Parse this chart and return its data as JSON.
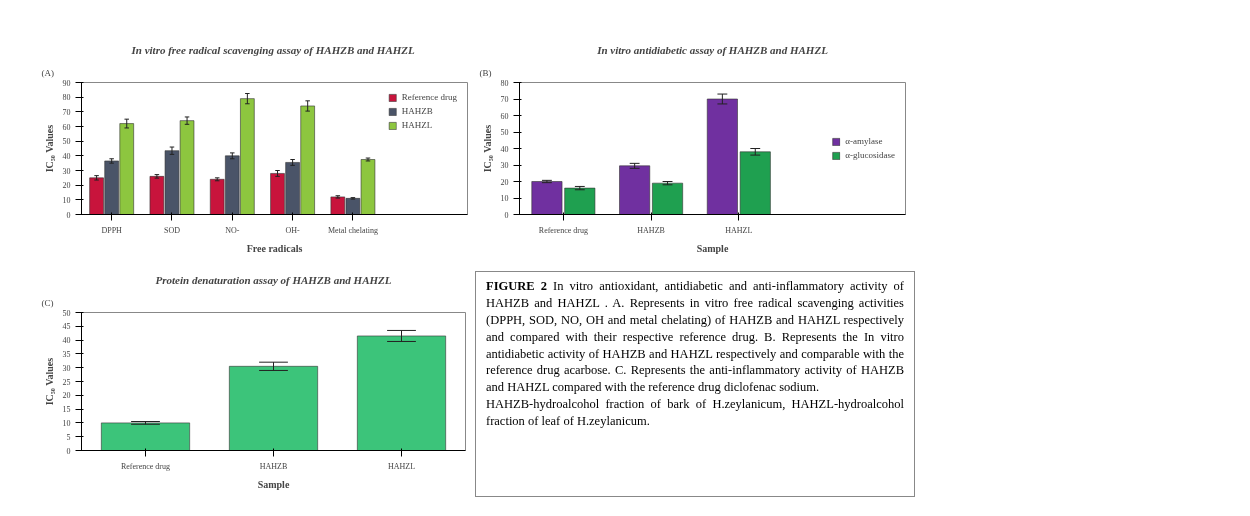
{
  "chart_data": [
    {
      "type": "bar",
      "title": "In vitro free radical scavenging assay of HAHZB  and HAHZL",
      "xlabel": "Free radicals",
      "ylabel": "IC₅₀ Values",
      "annotations": [
        "(A)"
      ],
      "categories": [
        "DPPH",
        "SOD",
        "NO-",
        "OH-",
        "Metal chelating"
      ],
      "series": [
        {
          "name": "Reference drug",
          "color": "#c8143c",
          "values": [
            25,
            26,
            24,
            28,
            12
          ],
          "errors": [
            1.5,
            1.2,
            1,
            2,
            0.8
          ]
        },
        {
          "name": "HAHZB",
          "color": "#4a5468",
          "values": [
            36.5,
            43.5,
            40,
            35.5,
            11
          ],
          "errors": [
            1.5,
            2.5,
            2,
            2,
            0.5
          ]
        },
        {
          "name": "HAHZL",
          "color": "#8dc63f",
          "values": [
            62,
            64,
            79,
            74,
            37.5
          ],
          "errors": [
            3,
            2.5,
            3.5,
            3.5,
            1
          ]
        }
      ],
      "ylim": [
        0,
        90
      ],
      "yticks": [
        0,
        10,
        20,
        30,
        40,
        50,
        60,
        70,
        80,
        90
      ],
      "grid": false,
      "legend": "top right"
    },
    {
      "type": "bar",
      "title": "In vitro antidiabetic assay of HAHZB and HAHZL",
      "xlabel": "Sample",
      "ylabel": "IC₅₀ Values",
      "annotations": [
        "(B)"
      ],
      "categories": [
        "Reference drug",
        "HAHZB",
        "HAHZL"
      ],
      "series": [
        {
          "name": "α-amylase",
          "color": "#7030a0",
          "values": [
            20,
            29.5,
            70
          ],
          "errors": [
            0.7,
            1.5,
            3
          ]
        },
        {
          "name": "α-glucosidase",
          "color": "#1fa050",
          "values": [
            16,
            19,
            38
          ],
          "errors": [
            1,
            1,
            2
          ]
        }
      ],
      "ylim": [
        0,
        80
      ],
      "yticks": [
        0,
        10,
        20,
        30,
        40,
        50,
        60,
        70,
        80
      ],
      "grid": false,
      "legend": "right"
    },
    {
      "type": "bar",
      "title": "Protein denaturation assay of HAHZB and HAHZL",
      "xlabel": "Sample",
      "ylabel": "IC₅₀ Values",
      "annotations": [
        "(C)"
      ],
      "categories": [
        "Reference drug",
        "HAHZB",
        "HAHZL"
      ],
      "values": [
        10,
        30.5,
        41.5
      ],
      "errors": [
        0.5,
        1.5,
        2
      ],
      "color": "#3cc47a",
      "ylim": [
        0,
        50
      ],
      "yticks": [
        0,
        5,
        10,
        15,
        20,
        25,
        30,
        35,
        40,
        45,
        50
      ],
      "grid": false
    },
    {
      "type": "other",
      "title": "FIGURE 2",
      "annotations": [
        "In vitro antioxidant, antidiabetic and anti-inflammatory activity of HAHZB and HAHZL . A. Represents in vitro free radical scavenging activities (DPPH, SOD, NO, OH and metal chelating) of HAHZB and HAHZL respectively and compared with their respective reference drug. B. Represents the In vitro antidiabetic activity of HAHZB and HAHZL respectively and comparable with the reference drug acarbose. C. Represents the anti-inflammatory activity of HAHZB and HAHZL compared with the reference drug diclofenac sodium.",
        "HAHZB-hydroalcohol fraction of bark of H.zeylanicum, HAHZL-hydroalcohol fraction of leaf of H.zeylanicum."
      ]
    }
  ]
}
